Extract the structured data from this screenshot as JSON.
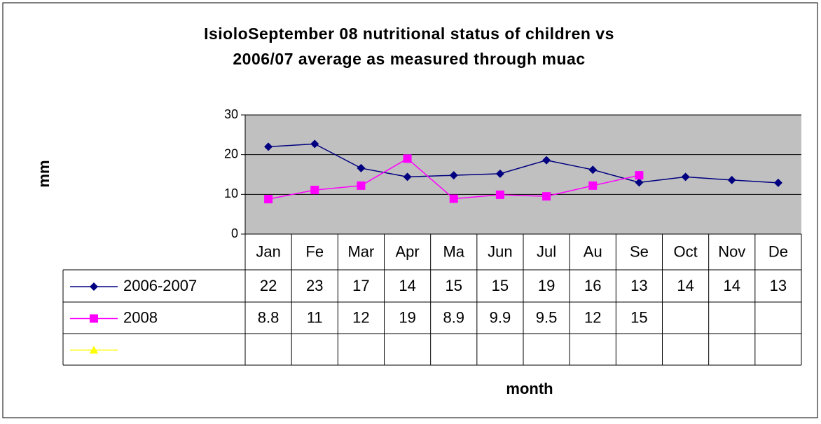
{
  "chart_data": {
    "type": "line",
    "title": [
      "IsioloSeptember 08  nutritional status of children vs",
      "2006/07 average as measured  through muac"
    ],
    "y_label": "mm",
    "x_label": "month",
    "categories": [
      "Jan",
      "Fe",
      "Mar",
      "Apr",
      "Ma",
      "Jun",
      "Jul",
      "Au",
      "Se",
      "Oct",
      "Nov",
      "De"
    ],
    "ylim": [
      0,
      30
    ],
    "yticks": [
      0,
      10,
      20,
      30
    ],
    "grid": true,
    "background": "#c0c0c0",
    "series": [
      {
        "name": "2006-2007",
        "color": "#000080",
        "marker": "diamond",
        "values": [
          22,
          22.7,
          16.6,
          14.4,
          14.8,
          15.2,
          18.6,
          16.2,
          13,
          14.4,
          13.6,
          12.9
        ],
        "value_labels": [
          "22",
          "23",
          "17",
          "14",
          "15",
          "15",
          "19",
          "16",
          "13",
          "14",
          "14",
          "13"
        ]
      },
      {
        "name": "2008",
        "color": "#ff00ff",
        "marker": "square",
        "values": [
          8.8,
          11.1,
          12.2,
          19,
          8.9,
          9.9,
          9.5,
          12.2,
          14.8,
          null,
          null,
          null
        ],
        "value_labels": [
          "8.8",
          "11",
          "12",
          "19",
          "8.9",
          "9.9",
          "9.5",
          "12",
          "15",
          null,
          null,
          null
        ]
      },
      {
        "color": "#ffff00",
        "marker": "triangle",
        "values": [
          null,
          null,
          null,
          null,
          null,
          null,
          null,
          null,
          null,
          null,
          null,
          null
        ]
      }
    ]
  }
}
